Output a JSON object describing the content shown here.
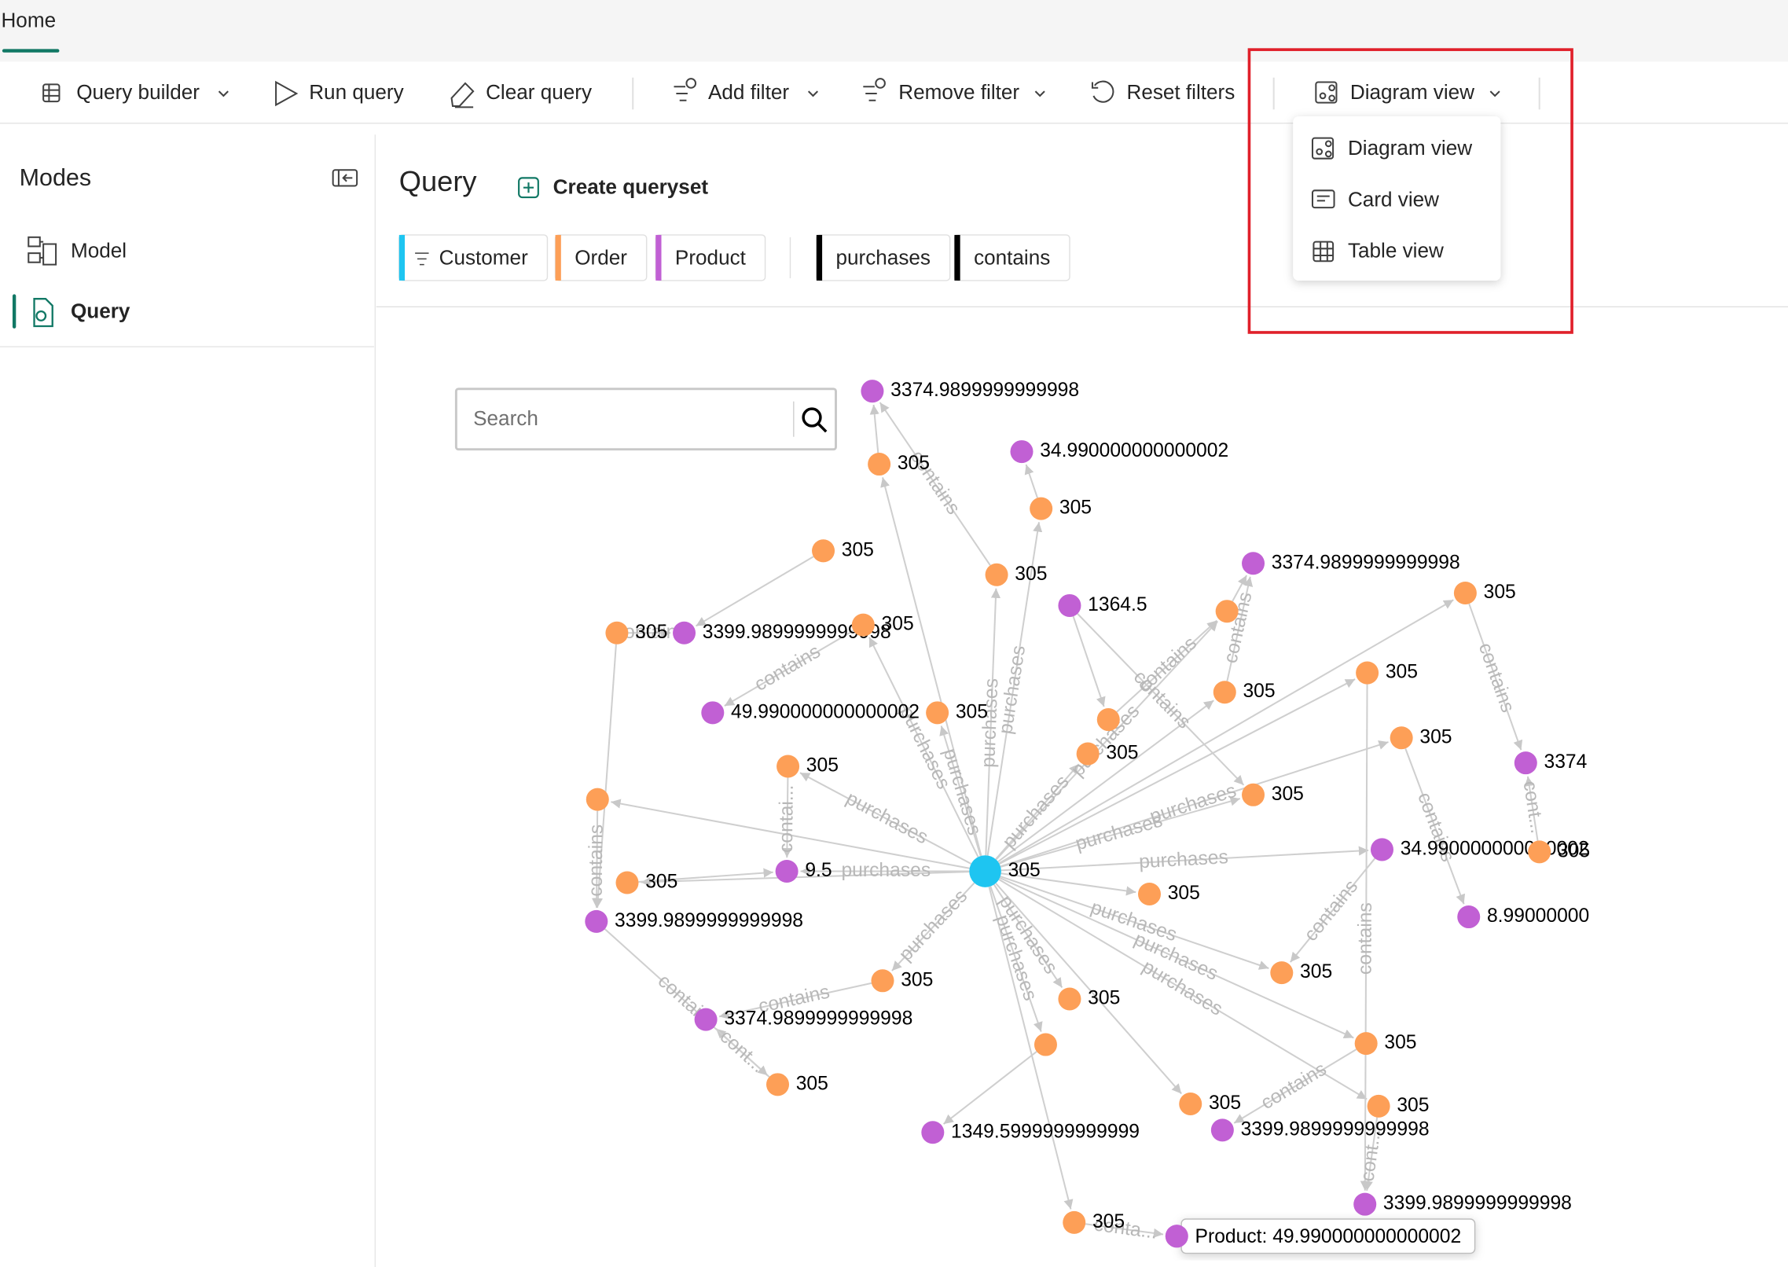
{
  "tabs": [
    "Home"
  ],
  "toolbar": [
    "Query builder",
    "Run query",
    "Clear query",
    "Add filter",
    "Remove filter",
    "Reset filters",
    "Diagram view"
  ],
  "view_menu": [
    "Diagram view",
    "Card view",
    "Table view"
  ],
  "sidebar": {
    "title": "Modes",
    "items": [
      "Model",
      "Query"
    ]
  },
  "query": {
    "title": "Query",
    "create": "Create queryset",
    "node_types": [
      {
        "name": "Customer",
        "color": "#1ec5f1"
      },
      {
        "name": "Order",
        "color": "#fd9f57"
      },
      {
        "name": "Product",
        "color": "#c160d4"
      }
    ],
    "edge_types": [
      "purchases",
      "contains"
    ],
    "search_placeholder": "Search"
  },
  "graph": {
    "nodes": [
      {
        "label": "305",
        "color": "#1ec5f1"
      },
      {
        "label": "3374.9899999999998",
        "color": "#c160d4"
      },
      {
        "label": "305",
        "color": "#fd9f57"
      },
      {
        "label": "34.990000000000002",
        "color": "#c160d4"
      },
      {
        "label": "305",
        "color": "#fd9f57"
      },
      {
        "label": "305",
        "color": "#fd9f57"
      },
      {
        "label": "305",
        "color": "#fd9f57"
      },
      {
        "label": "3374.9899999999998",
        "color": "#c160d4"
      },
      {
        "label": "305",
        "color": "#fd9f57"
      },
      {
        "label": "305",
        "color": "#fd9f57"
      },
      {
        "label": "3399.9899999999998",
        "color": "#c160d4"
      },
      {
        "label": "305",
        "color": "#fd9f57"
      },
      {
        "label": "1364.5",
        "color": "#c160d4"
      },
      {
        "color": "#fd9f57"
      },
      {
        "label": "49.990000000000002",
        "color": "#c160d4"
      },
      {
        "label": "305",
        "color": "#fd9f57"
      },
      {
        "label": "305",
        "color": "#fd9f57"
      },
      {
        "label": "305",
        "color": "#fd9f57"
      },
      {
        "color": "#fd9f57"
      },
      {
        "label": "305",
        "color": "#fd9f57"
      },
      {
        "label": "3374",
        "color": "#c160d4"
      },
      {
        "label": "305",
        "color": "#fd9f57"
      },
      {
        "label": "305",
        "color": "#fd9f57"
      },
      {
        "color": "#fd9f57"
      },
      {
        "label": "305",
        "color": "#fd9f57"
      },
      {
        "label": "34.990000000000002",
        "color": "#c160d4"
      },
      {
        "label": "305",
        "color": "#fd9f57"
      },
      {
        "label": "9.5",
        "color": "#c160d4"
      },
      {
        "label": "305",
        "color": "#fd9f57"
      },
      {
        "label": "305",
        "color": "#fd9f57"
      },
      {
        "label": "8.99000000",
        "color": "#c160d4"
      },
      {
        "label": "3399.9899999999998",
        "color": "#c160d4"
      },
      {
        "label": "305",
        "color": "#fd9f57"
      },
      {
        "label": "305",
        "color": "#fd9f57"
      },
      {
        "label": "305",
        "color": "#fd9f57"
      },
      {
        "label": "3374.9899999999998",
        "color": "#c160d4"
      },
      {
        "color": "#fd9f57"
      },
      {
        "label": "305",
        "color": "#fd9f57"
      },
      {
        "label": "305",
        "color": "#fd9f57"
      },
      {
        "label": "305",
        "color": "#fd9f57"
      },
      {
        "label": "305",
        "color": "#fd9f57"
      },
      {
        "label": "3399.9899999999998",
        "color": "#c160d4"
      },
      {
        "label": "1349.5999999999999",
        "color": "#c160d4"
      },
      {
        "label": "3399.9899999999998",
        "color": "#c160d4"
      },
      {
        "label": "305",
        "color": "#fd9f57"
      },
      {
        "color": "#c160d4"
      }
    ],
    "edges": [
      {
        "from": 0,
        "to": 2
      },
      {
        "from": 0,
        "to": 6,
        "label": "purchases"
      },
      {
        "from": 0,
        "to": 4,
        "label": "purchases"
      },
      {
        "from": 0,
        "to": 11,
        "label": "purchases"
      },
      {
        "from": 0,
        "to": 15,
        "label": "purchases"
      },
      {
        "from": 0,
        "to": 21,
        "label": "purchases"
      },
      {
        "from": 0,
        "to": 23
      },
      {
        "from": 0,
        "to": 27,
        "label": "purchases"
      },
      {
        "from": 0,
        "to": 33,
        "label": "purchases"
      },
      {
        "from": 0,
        "to": 36,
        "label": "purchases"
      },
      {
        "from": 0,
        "to": 34,
        "label": "purchases"
      },
      {
        "from": 0,
        "to": 39
      },
      {
        "from": 0,
        "to": 40,
        "label": "purchases"
      },
      {
        "from": 0,
        "to": 37,
        "label": "purchases"
      },
      {
        "from": 0,
        "to": 32,
        "label": "purchases"
      },
      {
        "from": 0,
        "to": 29
      },
      {
        "from": 0,
        "to": 25,
        "label": "purchases"
      },
      {
        "from": 0,
        "to": 19,
        "label": "purchases"
      },
      {
        "from": 0,
        "to": 16
      },
      {
        "from": 0,
        "to": 24,
        "label": "purchases"
      },
      {
        "from": 0,
        "to": 22,
        "label": "purchases"
      },
      {
        "from": 0,
        "to": 13,
        "label": "purchases"
      },
      {
        "from": 0,
        "to": 17
      },
      {
        "from": 0,
        "to": 8
      },
      {
        "from": 0,
        "to": 44
      },
      {
        "from": 0,
        "to": 28
      },
      {
        "from": 2,
        "to": 1
      },
      {
        "from": 6,
        "to": 1,
        "label": "contains"
      },
      {
        "from": 4,
        "to": 3
      },
      {
        "from": 5,
        "to": 10
      },
      {
        "from": 9,
        "to": 10,
        "label": "contains"
      },
      {
        "from": 11,
        "to": 14,
        "label": "contains"
      },
      {
        "from": 9,
        "to": 31
      },
      {
        "from": 23,
        "to": 31,
        "label": "contains"
      },
      {
        "from": 21,
        "to": 27,
        "label": "contai..."
      },
      {
        "from": 28,
        "to": 27
      },
      {
        "from": 33,
        "to": 35,
        "label": "contains"
      },
      {
        "from": 38,
        "to": 35,
        "label": "cont..."
      },
      {
        "from": 31,
        "to": 38,
        "label": "contains"
      },
      {
        "from": 12,
        "to": 18
      },
      {
        "from": 12,
        "to": 24,
        "label": "contains"
      },
      {
        "from": 13,
        "to": 7
      },
      {
        "from": 17,
        "to": 7,
        "label": "contains"
      },
      {
        "from": 18,
        "to": 13,
        "label": "contains"
      },
      {
        "from": 8,
        "to": 20,
        "label": "contains"
      },
      {
        "from": 26,
        "to": 20,
        "label": "cont..."
      },
      {
        "from": 19,
        "to": 30,
        "label": "contains"
      },
      {
        "from": 16,
        "to": 43,
        "label": "contains"
      },
      {
        "from": 25,
        "to": 32,
        "label": "contains"
      },
      {
        "from": 37,
        "to": 41,
        "label": "contains"
      },
      {
        "from": 40,
        "to": 43,
        "label": "cont..."
      },
      {
        "from": 36,
        "to": 42
      },
      {
        "from": 44,
        "to": 45,
        "label": "conta..."
      }
    ],
    "tooltip": "Product: 49.990000000000002"
  }
}
